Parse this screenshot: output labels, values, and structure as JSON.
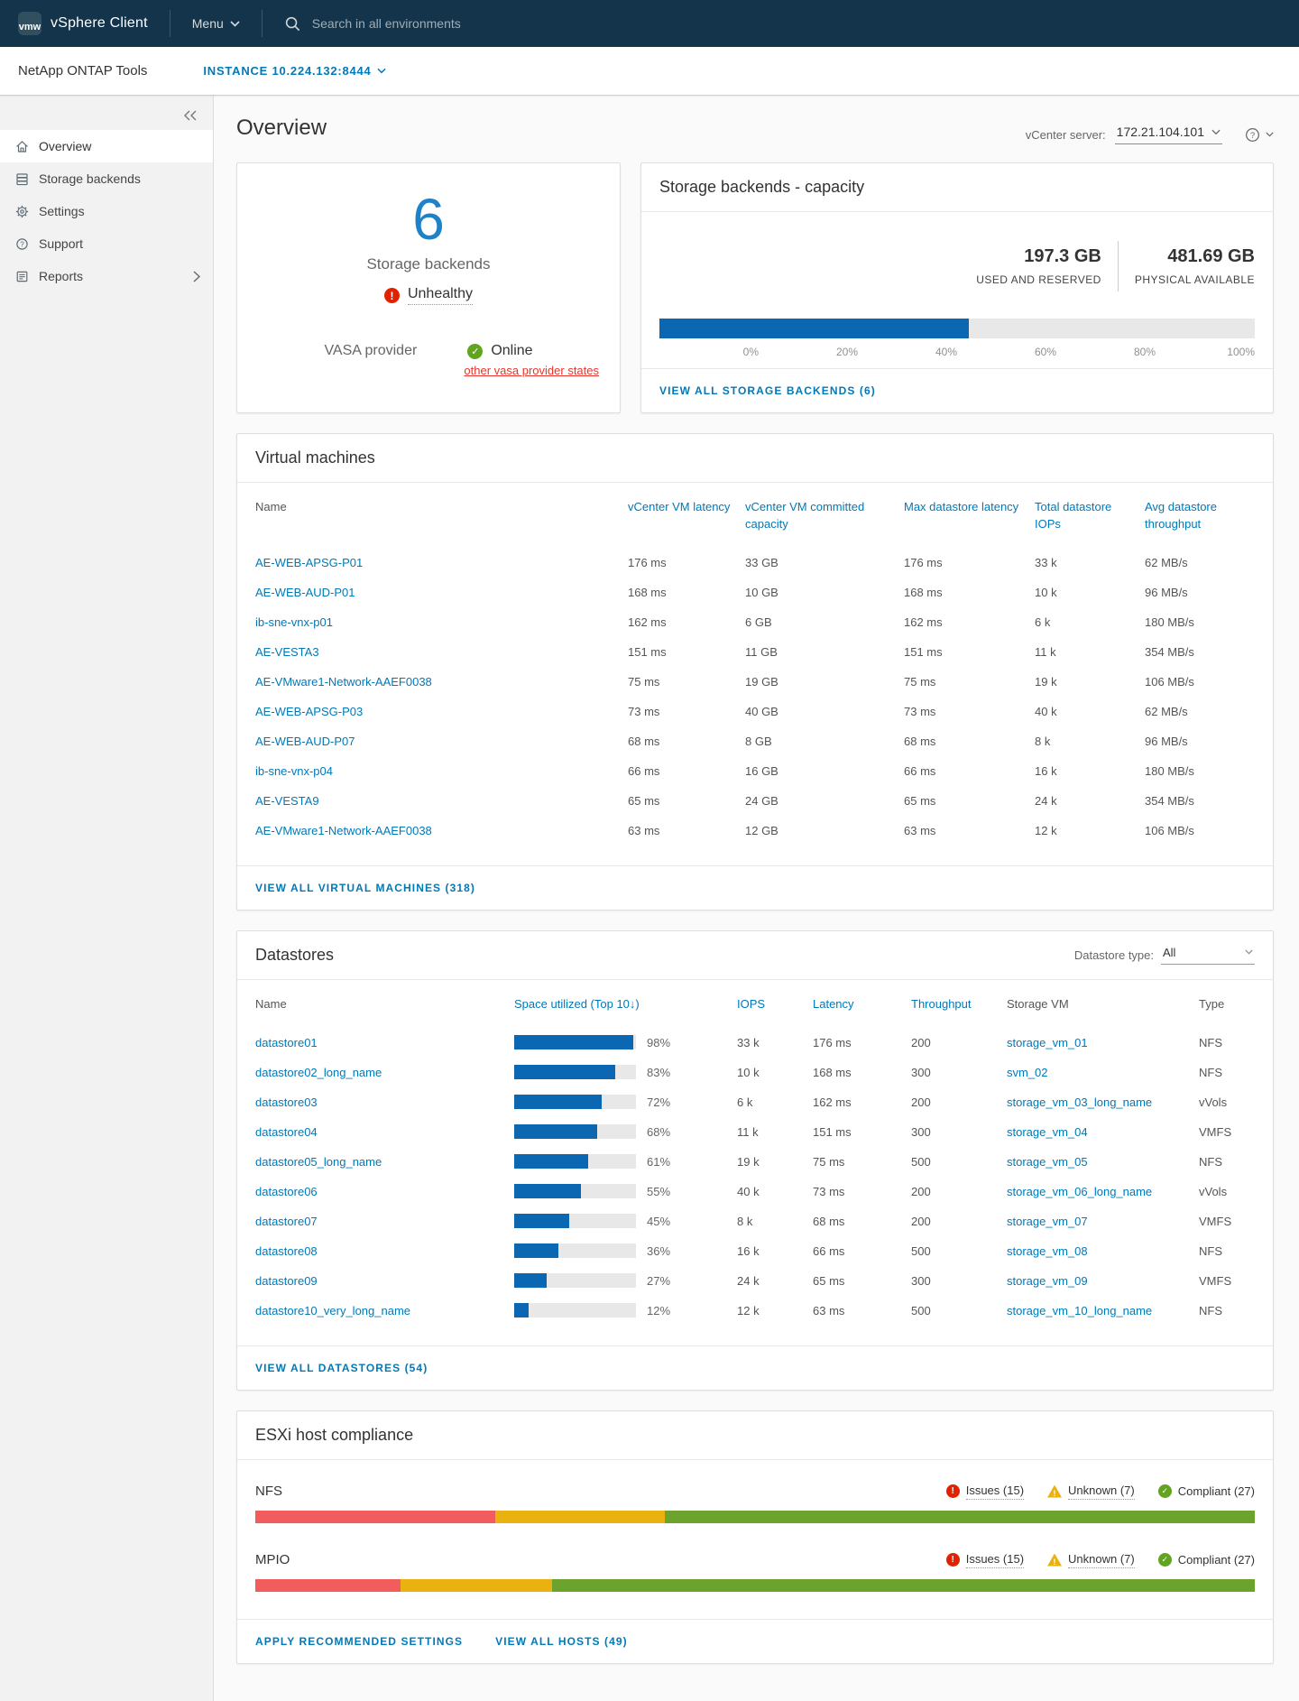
{
  "colors": {
    "header_bg": "#13344b",
    "accent_blue": "#0079b8",
    "bar_blue": "#0b67b2",
    "big_number_blue": "#1e82c8",
    "error_red": "#e12200",
    "ok_green": "#62a420",
    "segment_red": "#f15c5c",
    "segment_yellow": "#e9b210",
    "segment_green": "#6ca32e"
  },
  "header": {
    "logo_text": "vmw",
    "app_title": "vSphere Client",
    "menu_label": "Menu",
    "search_placeholder": "Search in all environments"
  },
  "plugin_bar": {
    "title": "NetApp ONTAP Tools",
    "instance_label": "INSTANCE 10.224.132:8444"
  },
  "sidebar": {
    "items": [
      {
        "icon": "home-icon",
        "label": "Overview",
        "active": true
      },
      {
        "icon": "storage-icon",
        "label": "Storage backends",
        "active": false
      },
      {
        "icon": "gear-icon",
        "label": "Settings",
        "active": false
      },
      {
        "icon": "help-icon",
        "label": "Support",
        "active": false
      },
      {
        "icon": "report-icon",
        "label": "Reports",
        "active": false,
        "has_submenu": true
      }
    ]
  },
  "page": {
    "title": "Overview",
    "vcenter_label": "vCenter server:",
    "vcenter_value": "172.21.104.101"
  },
  "summary_card": {
    "count": "6",
    "count_label": "Storage backends",
    "health_status": "Unhealthy",
    "vasa_label": "VASA provider",
    "vasa_status": "Online",
    "vasa_link": "other vasa provider states"
  },
  "capacity_card": {
    "title": "Storage backends - capacity",
    "used_value": "197.3 GB",
    "used_label": "USED AND RESERVED",
    "available_value": "481.69 GB",
    "available_label": "PHYSICAL AVAILABLE",
    "fill_percent": 52,
    "scale_labels": [
      "0%",
      "20%",
      "40%",
      "60%",
      "80%",
      "100%"
    ],
    "footer_link": "VIEW ALL STORAGE BACKENDS (6)"
  },
  "vm_card": {
    "title": "Virtual machines",
    "columns": [
      "Name",
      "vCenter VM latency",
      "vCenter VM committed capacity",
      "Max datastore latency",
      "Total datastore IOPs",
      "Avg datastore throughput"
    ],
    "rows": [
      [
        "AE-WEB-APSG-P01",
        "176 ms",
        "33 GB",
        "176 ms",
        "33 k",
        "62 MB/s"
      ],
      [
        "AE-WEB-AUD-P01",
        "168 ms",
        "10 GB",
        "168 ms",
        "10 k",
        "96 MB/s"
      ],
      [
        "ib-sne-vnx-p01",
        "162 ms",
        "6 GB",
        "162 ms",
        "6 k",
        "180 MB/s"
      ],
      [
        "AE-VESTA3",
        "151 ms",
        "11 GB",
        "151 ms",
        "11 k",
        "354 MB/s"
      ],
      [
        "AE-VMware1-Network-AAEF0038",
        "75 ms",
        "19 GB",
        "75 ms",
        "19 k",
        "106 MB/s"
      ],
      [
        "AE-WEB-APSG-P03",
        "73 ms",
        "40 GB",
        "73 ms",
        "40 k",
        "62 MB/s"
      ],
      [
        "AE-WEB-AUD-P07",
        "68 ms",
        "8 GB",
        "68 ms",
        "8 k",
        "96 MB/s"
      ],
      [
        "ib-sne-vnx-p04",
        "66 ms",
        "16 GB",
        "66 ms",
        "16 k",
        "180 MB/s"
      ],
      [
        "AE-VESTA9",
        "65 ms",
        "24 GB",
        "65 ms",
        "24 k",
        "354 MB/s"
      ],
      [
        "AE-VMware1-Network-AAEF0038",
        "63 ms",
        "12 GB",
        "63 ms",
        "12 k",
        "106 MB/s"
      ]
    ],
    "footer_link": "VIEW ALL VIRTUAL MACHINES (318)"
  },
  "datastore_card": {
    "title": "Datastores",
    "filter_label": "Datastore type:",
    "filter_value": "All",
    "columns": [
      "Name",
      "Space utilized  (Top 10↓)",
      "IOPS",
      "Latency",
      "Throughput",
      "Storage VM",
      "Type"
    ],
    "rows": [
      {
        "name": "datastore01",
        "percent": 98,
        "percent_label": "98%",
        "iops": "33 k",
        "latency": "176 ms",
        "throughput": "200",
        "storage_vm": "storage_vm_01",
        "type": "NFS"
      },
      {
        "name": "datastore02_long_name",
        "percent": 83,
        "percent_label": "83%",
        "iops": "10 k",
        "latency": "168 ms",
        "throughput": "300",
        "storage_vm": "svm_02",
        "type": "NFS"
      },
      {
        "name": "datastore03",
        "percent": 72,
        "percent_label": "72%",
        "iops": "6 k",
        "latency": "162 ms",
        "throughput": "200",
        "storage_vm": "storage_vm_03_long_name",
        "type": "vVols"
      },
      {
        "name": "datastore04",
        "percent": 68,
        "percent_label": "68%",
        "iops": "11 k",
        "latency": "151 ms",
        "throughput": "300",
        "storage_vm": "storage_vm_04",
        "type": "VMFS"
      },
      {
        "name": "datastore05_long_name",
        "percent": 61,
        "percent_label": "61%",
        "iops": "19 k",
        "latency": "75 ms",
        "throughput": "500",
        "storage_vm": "storage_vm_05",
        "type": "NFS"
      },
      {
        "name": "datastore06",
        "percent": 55,
        "percent_label": "55%",
        "iops": "40 k",
        "latency": "73 ms",
        "throughput": "200",
        "storage_vm": "storage_vm_06_long_name",
        "type": "vVols"
      },
      {
        "name": "datastore07",
        "percent": 45,
        "percent_label": "45%",
        "iops": "8 k",
        "latency": "68 ms",
        "throughput": "200",
        "storage_vm": "storage_vm_07",
        "type": "VMFS"
      },
      {
        "name": "datastore08",
        "percent": 36,
        "percent_label": "36%",
        "iops": "16 k",
        "latency": "66 ms",
        "throughput": "500",
        "storage_vm": "storage_vm_08",
        "type": "NFS"
      },
      {
        "name": "datastore09",
        "percent": 27,
        "percent_label": "27%",
        "iops": "24 k",
        "latency": "65 ms",
        "throughput": "300",
        "storage_vm": "storage_vm_09",
        "type": "VMFS"
      },
      {
        "name": "datastore10_very_long_name",
        "percent": 12,
        "percent_label": "12%",
        "iops": "12 k",
        "latency": "63 ms",
        "throughput": "500",
        "storage_vm": "storage_vm_10_long_name",
        "type": "NFS"
      }
    ],
    "footer_link": "VIEW ALL DATASTORES (54)"
  },
  "compliance_card": {
    "title": "ESXi host compliance",
    "legend": {
      "issues": "Issues (15)",
      "unknown": "Unknown (7)",
      "compliant": "Compliant (27)"
    },
    "rows": [
      {
        "label": "NFS",
        "segments": {
          "issues": 24,
          "unknown": 17,
          "compliant": 59
        }
      },
      {
        "label": "MPIO",
        "segments": {
          "issues": 14.5,
          "unknown": 15.2,
          "compliant": 70.3
        }
      }
    ],
    "footer_links": {
      "apply": "APPLY RECOMMENDED SETTINGS",
      "view_all": "VIEW ALL HOSTS (49)"
    }
  }
}
